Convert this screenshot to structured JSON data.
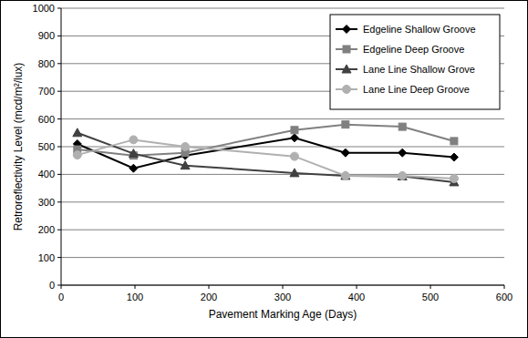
{
  "chart_data": {
    "type": "line",
    "x_label": "Pavement Marking Age (Days)",
    "y_label": "Retroreflectivity Level (mcd/m²/lux)",
    "x": [
      22,
      98,
      168,
      316,
      385,
      462,
      532
    ],
    "series": [
      {
        "name": "Edgeline Shallow Groove",
        "color": "#000000",
        "marker": "diamond",
        "values": [
          510,
          422,
          468,
          532,
          478,
          478,
          462
        ]
      },
      {
        "name": "Edgeline Deep Groove",
        "color": "#808080",
        "marker": "square",
        "values": [
          490,
          468,
          478,
          560,
          580,
          572,
          520
        ]
      },
      {
        "name": "Lane Line Shallow Grove",
        "color": "#404040",
        "marker": "triangle",
        "values": [
          550,
          475,
          432,
          405,
          395,
          393,
          372
        ]
      },
      {
        "name": "Lane Line Deep Groove",
        "color": "#b0b0b0",
        "marker": "circle",
        "values": [
          470,
          525,
          500,
          465,
          395,
          395,
          385
        ]
      }
    ],
    "xlim": [
      0,
      600
    ],
    "xticks": [
      0,
      100,
      200,
      300,
      400,
      500,
      600
    ],
    "ylim": [
      0,
      1000
    ],
    "yticks": [
      0,
      100,
      200,
      300,
      400,
      500,
      600,
      700,
      800,
      900,
      1000
    ],
    "grid": true,
    "legend": "top-right"
  }
}
